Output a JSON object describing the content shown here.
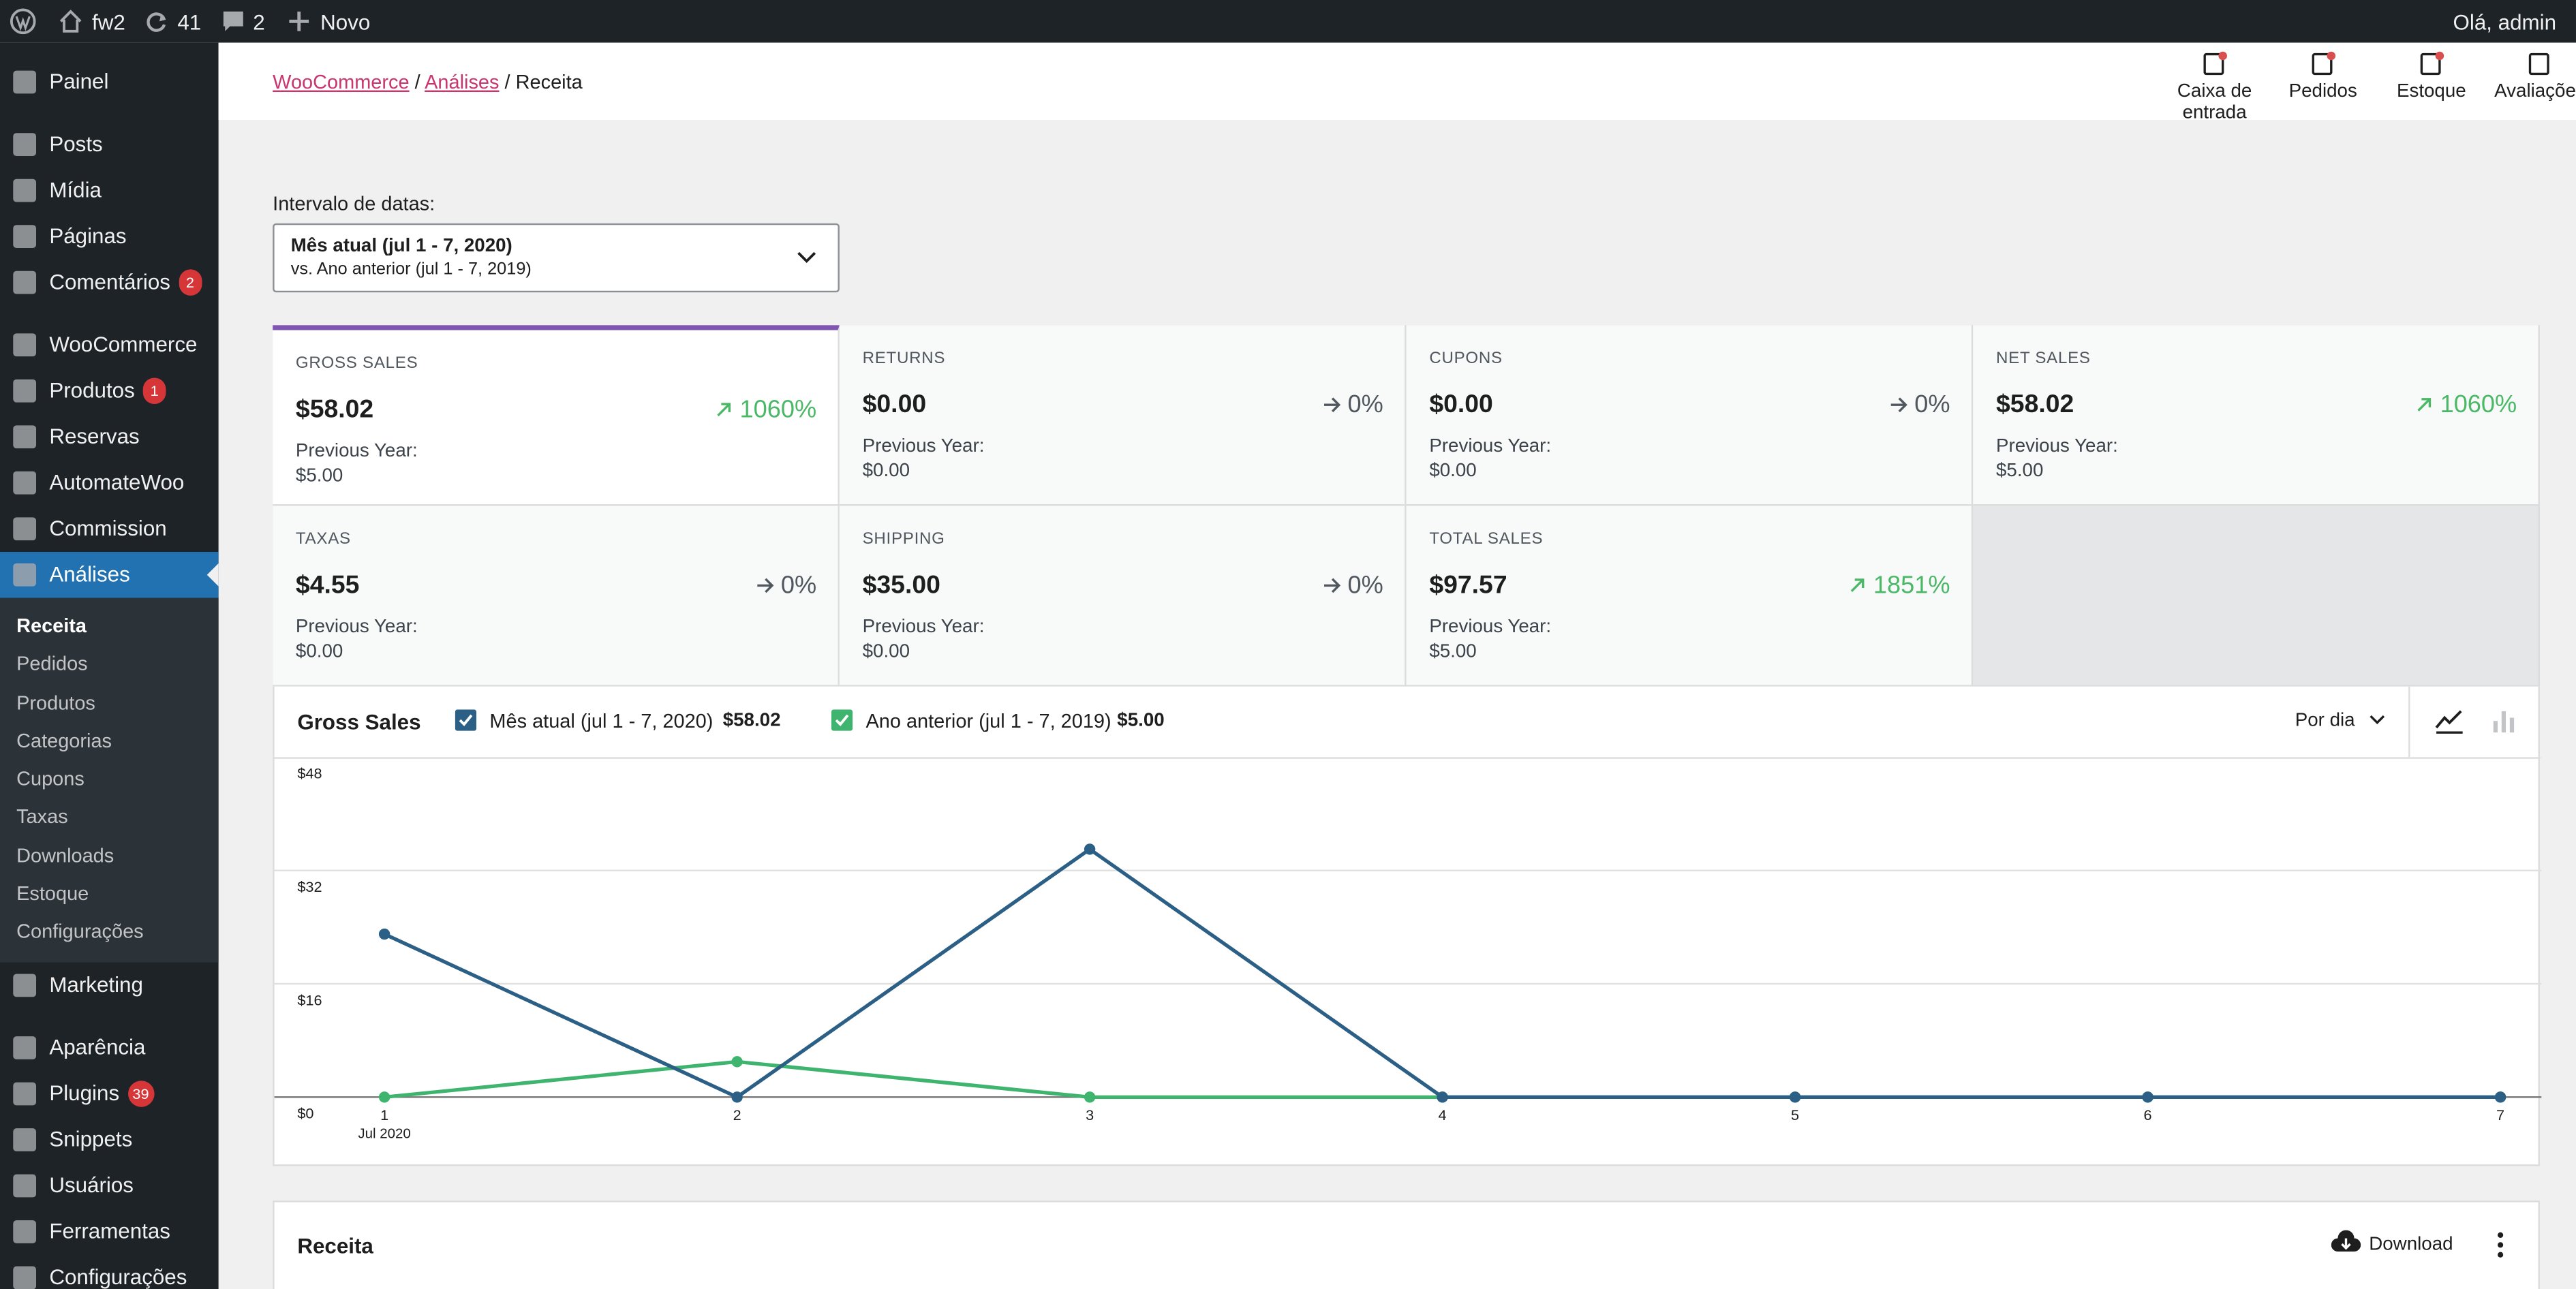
{
  "admin_bar": {
    "site": "fw2",
    "updates": "41",
    "comments": "2",
    "new": "Novo",
    "greeting": "Olá, admin"
  },
  "menu": [
    [
      {
        "label": "Painel"
      }
    ],
    [
      {
        "label": "Posts"
      },
      {
        "label": "Mídia"
      },
      {
        "label": "Páginas"
      },
      {
        "label": "Comentários",
        "badge": "2"
      }
    ],
    [
      {
        "label": "WooCommerce"
      },
      {
        "label": "Produtos",
        "badge": "1"
      },
      {
        "label": "Reservas"
      },
      {
        "label": "AutomateWoo"
      },
      {
        "label": "Commission"
      },
      {
        "label": "Análises",
        "active": true,
        "submenu": [
          "Receita",
          "Pedidos",
          "Produtos",
          "Categorias",
          "Cupons",
          "Taxas",
          "Downloads",
          "Estoque",
          "Configurações"
        ]
      },
      {
        "label": "Marketing"
      }
    ],
    [
      {
        "label": "Aparência"
      },
      {
        "label": "Plugins",
        "badge": "39"
      },
      {
        "label": "Snippets"
      },
      {
        "label": "Usuários"
      },
      {
        "label": "Ferramentas"
      },
      {
        "label": "Configurações"
      }
    ]
  ],
  "header": {
    "breadcrumbs": [
      "WooCommerce",
      "Análises",
      "Receita"
    ],
    "activity": [
      "Caixa de entrada",
      "Pedidos",
      "Estoque",
      "Avaliações"
    ]
  },
  "date_range": {
    "label": "Intervalo de datas:",
    "current": "Mês atual (jul 1 - 7, 2020)",
    "compare": "vs. Ano anterior (jul 1 - 7, 2019)"
  },
  "cards": [
    {
      "label": "GROSS SALES",
      "value": "$58.02",
      "delta": "1060%",
      "trend": "up",
      "previous_label": "Previous Year:",
      "previous": "$5.00",
      "selected": true
    },
    {
      "label": "RETURNS",
      "value": "$0.00",
      "delta": "0%",
      "trend": "flat",
      "previous_label": "Previous Year:",
      "previous": "$0.00"
    },
    {
      "label": "CUPONS",
      "value": "$0.00",
      "delta": "0%",
      "trend": "flat",
      "previous_label": "Previous Year:",
      "previous": "$0.00"
    },
    {
      "label": "NET SALES",
      "value": "$58.02",
      "delta": "1060%",
      "trend": "up",
      "previous_label": "Previous Year:",
      "previous": "$5.00"
    },
    {
      "label": "TAXAS",
      "value": "$4.55",
      "delta": "0%",
      "trend": "flat",
      "previous_label": "Previous Year:",
      "previous": "$0.00"
    },
    {
      "label": "SHIPPING",
      "value": "$35.00",
      "delta": "0%",
      "trend": "flat",
      "previous_label": "Previous Year:",
      "previous": "$0.00"
    },
    {
      "label": "TOTAL SALES",
      "value": "$97.57",
      "delta": "1851%",
      "trend": "up",
      "previous_label": "Previous Year:",
      "previous": "$5.00"
    }
  ],
  "chart_data": {
    "type": "line",
    "title": "Gross Sales",
    "interval": "Por dia",
    "categories": [
      "1",
      "2",
      "3",
      "4",
      "5",
      "6",
      "7"
    ],
    "period_label": "Jul 2020",
    "series": [
      {
        "name": "Mês atual (jul 1 - 7, 2020)",
        "total": "$58.02",
        "color": "#2c5f85",
        "values": [
          23.02,
          0,
          35,
          0,
          0,
          0,
          0
        ]
      },
      {
        "name": "Ano anterior (jul 1 - 7, 2019)",
        "total": "$5.00",
        "color": "#3eb46f",
        "values": [
          0,
          5,
          0,
          0,
          0,
          0,
          0
        ]
      }
    ],
    "ylim": [
      0,
      48
    ],
    "yticks": [
      {
        "value": 0,
        "label": "$0"
      },
      {
        "value": 16,
        "label": "$16"
      },
      {
        "value": 32,
        "label": "$32"
      },
      {
        "value": 48,
        "label": "$48"
      }
    ],
    "grid": true
  },
  "table_panel": {
    "title": "Receita",
    "download": "Download"
  }
}
